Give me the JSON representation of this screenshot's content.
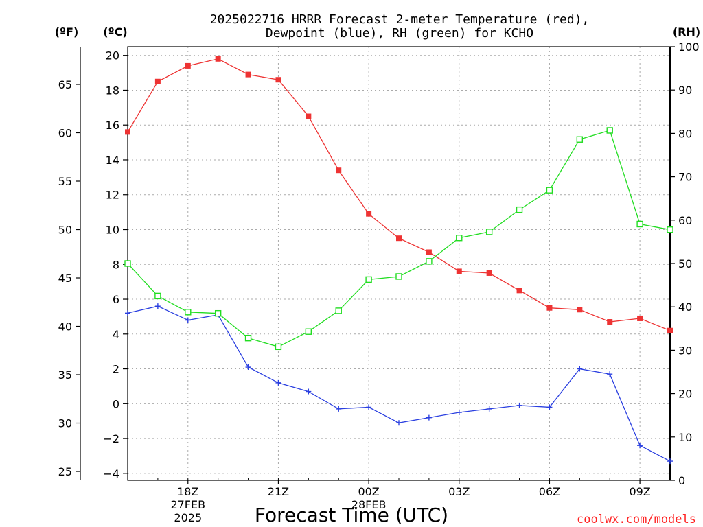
{
  "chart_data": {
    "type": "line",
    "title_line1": "2025022716 HRRR Forecast 2-meter Temperature (red),",
    "title_line2": "Dewpoint (blue), RH (green) for KCHO",
    "xlabel": "Forecast Time (UTC)",
    "unit_labels": {
      "fahrenheit": "(ºF)",
      "celsius": "(ºC)",
      "rh": "(RH)"
    },
    "credit": "coolwx.com/models",
    "x_hours": [
      16,
      17,
      18,
      19,
      20,
      21,
      22,
      23,
      24,
      25,
      26,
      27,
      28,
      29,
      30,
      31,
      32,
      33,
      34
    ],
    "xlim": [
      16,
      34
    ],
    "x_ticks": [
      {
        "hour": 18,
        "label": "18Z",
        "sub1": "27FEB",
        "sub2": "2025"
      },
      {
        "hour": 21,
        "label": "21Z",
        "sub1": "",
        "sub2": ""
      },
      {
        "hour": 24,
        "label": "00Z",
        "sub1": "28FEB",
        "sub2": ""
      },
      {
        "hour": 27,
        "label": "03Z",
        "sub1": "",
        "sub2": ""
      },
      {
        "hour": 30,
        "label": "06Z",
        "sub1": "",
        "sub2": ""
      },
      {
        "hour": 33,
        "label": "09Z",
        "sub1": "",
        "sub2": ""
      }
    ],
    "y_celsius": {
      "ylim": [
        -4.4,
        20.5
      ],
      "ticks": [
        -4,
        -2,
        0,
        2,
        4,
        6,
        8,
        10,
        12,
        14,
        16,
        18,
        20
      ]
    },
    "y_fahrenheit_ticks": [
      25,
      30,
      35,
      40,
      45,
      50,
      55,
      60,
      65
    ],
    "y_rh": {
      "ylim": [
        0,
        100
      ],
      "ticks": [
        0,
        10,
        20,
        30,
        40,
        50,
        60,
        70,
        80,
        90,
        100
      ]
    },
    "grid": true,
    "series": [
      {
        "name": "Temperature",
        "axis": "celsius",
        "color": "#ee3333",
        "marker": "filled-square",
        "values": [
          15.6,
          18.5,
          19.4,
          19.8,
          18.9,
          18.6,
          16.5,
          13.4,
          10.9,
          9.5,
          8.7,
          7.6,
          7.5,
          6.5,
          5.5,
          5.4,
          4.7,
          4.9,
          4.2
        ]
      },
      {
        "name": "Dewpoint",
        "axis": "celsius",
        "color": "#2a3fe0",
        "marker": "plus",
        "values": [
          5.2,
          5.6,
          4.8,
          5.1,
          2.1,
          1.2,
          0.7,
          -0.3,
          -0.2,
          -1.1,
          -0.8,
          -0.5,
          -0.3,
          -0.1,
          -0.2,
          2.0,
          1.7,
          -2.4,
          -3.3
        ]
      },
      {
        "name": "RH",
        "axis": "rh",
        "color": "#22dd22",
        "marker": "open-square",
        "values": [
          50,
          42.5,
          38.8,
          38.5,
          32.8,
          30.8,
          34.3,
          39.1,
          46.3,
          47,
          50.5,
          55.9,
          57.3,
          62.4,
          66.9,
          78.6,
          80.7,
          59.1,
          57.8
        ]
      }
    ]
  }
}
